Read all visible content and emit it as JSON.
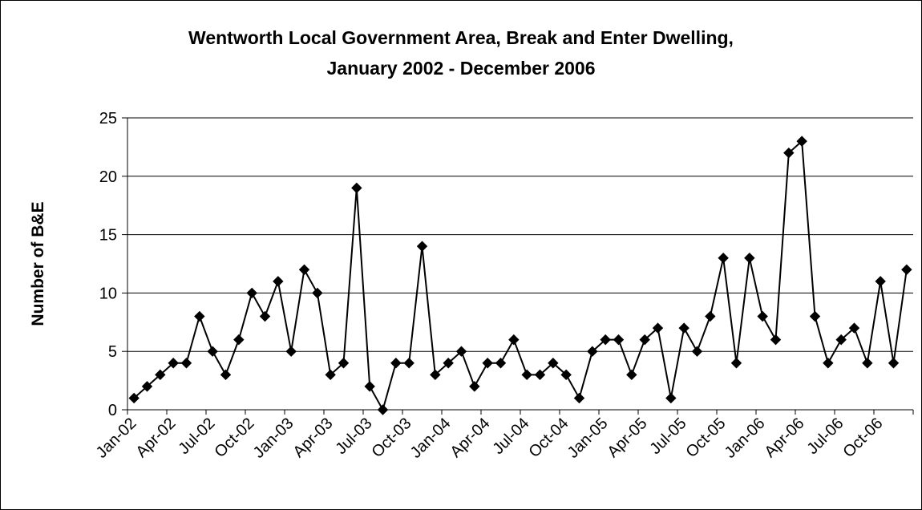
{
  "chart_data": {
    "type": "line",
    "title": "Wentworth Local Government Area, Break and Enter Dwelling,",
    "subtitle": "January 2002 - December 2006",
    "xlabel": "",
    "ylabel": "Number of B&E",
    "ylim": [
      0,
      25
    ],
    "yticks": [
      0,
      5,
      10,
      15,
      20,
      25
    ],
    "grid": "horizontal",
    "legend": "none",
    "x_tick_labels": [
      "Jan-02",
      "Apr-02",
      "Jul-02",
      "Oct-02",
      "Jan-03",
      "Apr-03",
      "Jul-03",
      "Oct-03",
      "Jan-04",
      "Apr-04",
      "Jul-04",
      "Oct-04",
      "Jan-05",
      "Apr-05",
      "Jul-05",
      "Oct-05",
      "Jan-06",
      "Apr-06",
      "Jul-06",
      "Oct-06"
    ],
    "x": [
      "Jan-02",
      "Feb-02",
      "Mar-02",
      "Apr-02",
      "May-02",
      "Jun-02",
      "Jul-02",
      "Aug-02",
      "Sep-02",
      "Oct-02",
      "Nov-02",
      "Dec-02",
      "Jan-03",
      "Feb-03",
      "Mar-03",
      "Apr-03",
      "May-03",
      "Jun-03",
      "Jul-03",
      "Aug-03",
      "Sep-03",
      "Oct-03",
      "Nov-03",
      "Dec-03",
      "Jan-04",
      "Feb-04",
      "Mar-04",
      "Apr-04",
      "May-04",
      "Jun-04",
      "Jul-04",
      "Aug-04",
      "Sep-04",
      "Oct-04",
      "Nov-04",
      "Dec-04",
      "Jan-05",
      "Feb-05",
      "Mar-05",
      "Apr-05",
      "May-05",
      "Jun-05",
      "Jul-05",
      "Aug-05",
      "Sep-05",
      "Oct-05",
      "Nov-05",
      "Dec-05",
      "Jan-06",
      "Feb-06",
      "Mar-06",
      "Apr-06",
      "May-06",
      "Jun-06",
      "Jul-06",
      "Aug-06",
      "Sep-06",
      "Oct-06",
      "Nov-06",
      "Dec-06"
    ],
    "series": [
      {
        "values": [
          1,
          2,
          3,
          4,
          4,
          8,
          5,
          3,
          6,
          10,
          8,
          11,
          5,
          12,
          10,
          3,
          4,
          19,
          2,
          0,
          4,
          4,
          14,
          3,
          4,
          5,
          2,
          4,
          4,
          6,
          3,
          3,
          4,
          3,
          1,
          5,
          6,
          6,
          3,
          6,
          7,
          1,
          7,
          5,
          8,
          13,
          4,
          13,
          8,
          6,
          22,
          23,
          8,
          4,
          6,
          7,
          4,
          11,
          4,
          12
        ],
        "color": "#000000",
        "marker": "diamond"
      }
    ]
  }
}
